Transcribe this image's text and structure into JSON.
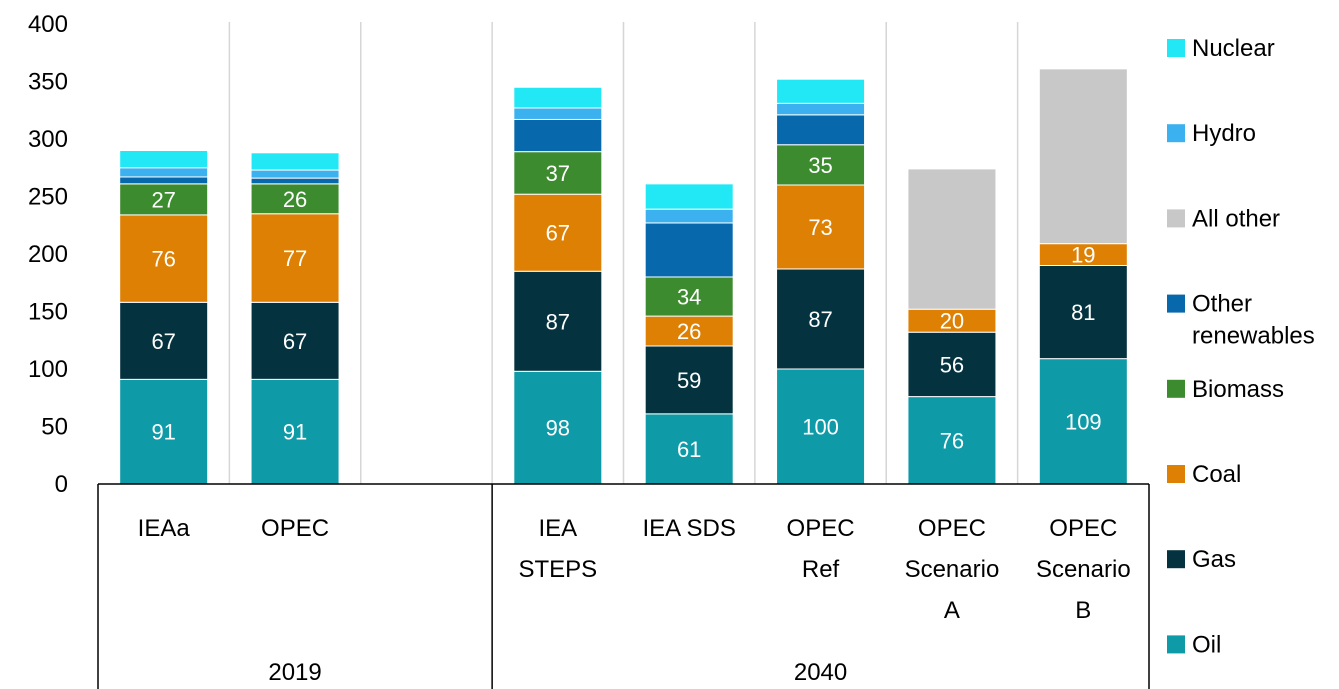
{
  "chart_data": {
    "type": "bar",
    "stacked": true,
    "ylim": [
      0,
      400
    ],
    "yticks": [
      0,
      50,
      100,
      150,
      200,
      250,
      300,
      350,
      400
    ],
    "grid": false,
    "legend_position": "right",
    "categories": [
      {
        "label": [
          "IEAa"
        ],
        "group": "2019",
        "gap": false
      },
      {
        "label": [
          "OPEC"
        ],
        "group": "2019",
        "gap": false
      },
      {
        "label": [],
        "group": "2019",
        "gap": true
      },
      {
        "label": [
          "IEA",
          "STEPS"
        ],
        "group": "2040",
        "gap": false
      },
      {
        "label": [
          "IEA SDS"
        ],
        "group": "2040",
        "gap": false
      },
      {
        "label": [
          "OPEC",
          "Ref"
        ],
        "group": "2040",
        "gap": false
      },
      {
        "label": [
          "OPEC",
          "Scenario",
          "A"
        ],
        "group": "2040",
        "gap": false
      },
      {
        "label": [
          "OPEC",
          "Scenario",
          "B"
        ],
        "group": "2040",
        "gap": false
      }
    ],
    "groups": [
      {
        "label": "2019",
        "start": 0,
        "end": 2
      },
      {
        "label": "2040",
        "start": 3,
        "end": 7
      }
    ],
    "series": [
      {
        "name": "Oil",
        "color": "#0e9aa7",
        "label_color": "#ffffff",
        "values": [
          91,
          91,
          null,
          98,
          61,
          100,
          76,
          109
        ],
        "show_labels": true
      },
      {
        "name": "Gas",
        "color": "#04333f",
        "label_color": "#ffffff",
        "values": [
          67,
          67,
          null,
          87,
          59,
          87,
          56,
          81
        ],
        "show_labels": true
      },
      {
        "name": "Coal",
        "color": "#dd8004",
        "label_color": "#ffffff",
        "values": [
          76,
          77,
          null,
          67,
          26,
          73,
          20,
          19
        ],
        "show_labels": true
      },
      {
        "name": "Biomass",
        "color": "#3d8b2f",
        "label_color": "#ffffff",
        "values": [
          27,
          26,
          null,
          37,
          34,
          35,
          0,
          0
        ],
        "show_labels": true
      },
      {
        "name": "Other renewables",
        "color": "#0868ac",
        "label_color": "#ffffff",
        "values": [
          6,
          5,
          null,
          28,
          47,
          26,
          0,
          0
        ],
        "show_labels": false
      },
      {
        "name": "All other",
        "color": "#c8c8c8",
        "label_color": "#000000",
        "values": [
          0,
          0,
          null,
          0,
          0,
          0,
          122,
          152
        ],
        "show_labels": false
      },
      {
        "name": "Hydro",
        "color": "#3cb1f0",
        "label_color": "#ffffff",
        "values": [
          8,
          7,
          null,
          10,
          12,
          10,
          0,
          0
        ],
        "show_labels": false
      },
      {
        "name": "Nuclear",
        "color": "#22e8f6",
        "label_color": "#000000",
        "values": [
          15,
          15,
          null,
          18,
          22,
          21,
          0,
          0
        ],
        "show_labels": false
      }
    ],
    "legend_order": [
      "Nuclear",
      "Hydro",
      "All other",
      "Other renewables",
      "Biomass",
      "Coal",
      "Gas",
      "Oil"
    ],
    "legend_lines": {
      "Nuclear": [
        "Nuclear"
      ],
      "Hydro": [
        "Hydro"
      ],
      "All other": [
        "All other"
      ],
      "Other renewables": [
        "Other",
        "renewables"
      ],
      "Biomass": [
        "Biomass"
      ],
      "Coal": [
        "Coal"
      ],
      "Gas": [
        "Gas"
      ],
      "Oil": [
        "Oil"
      ]
    }
  }
}
